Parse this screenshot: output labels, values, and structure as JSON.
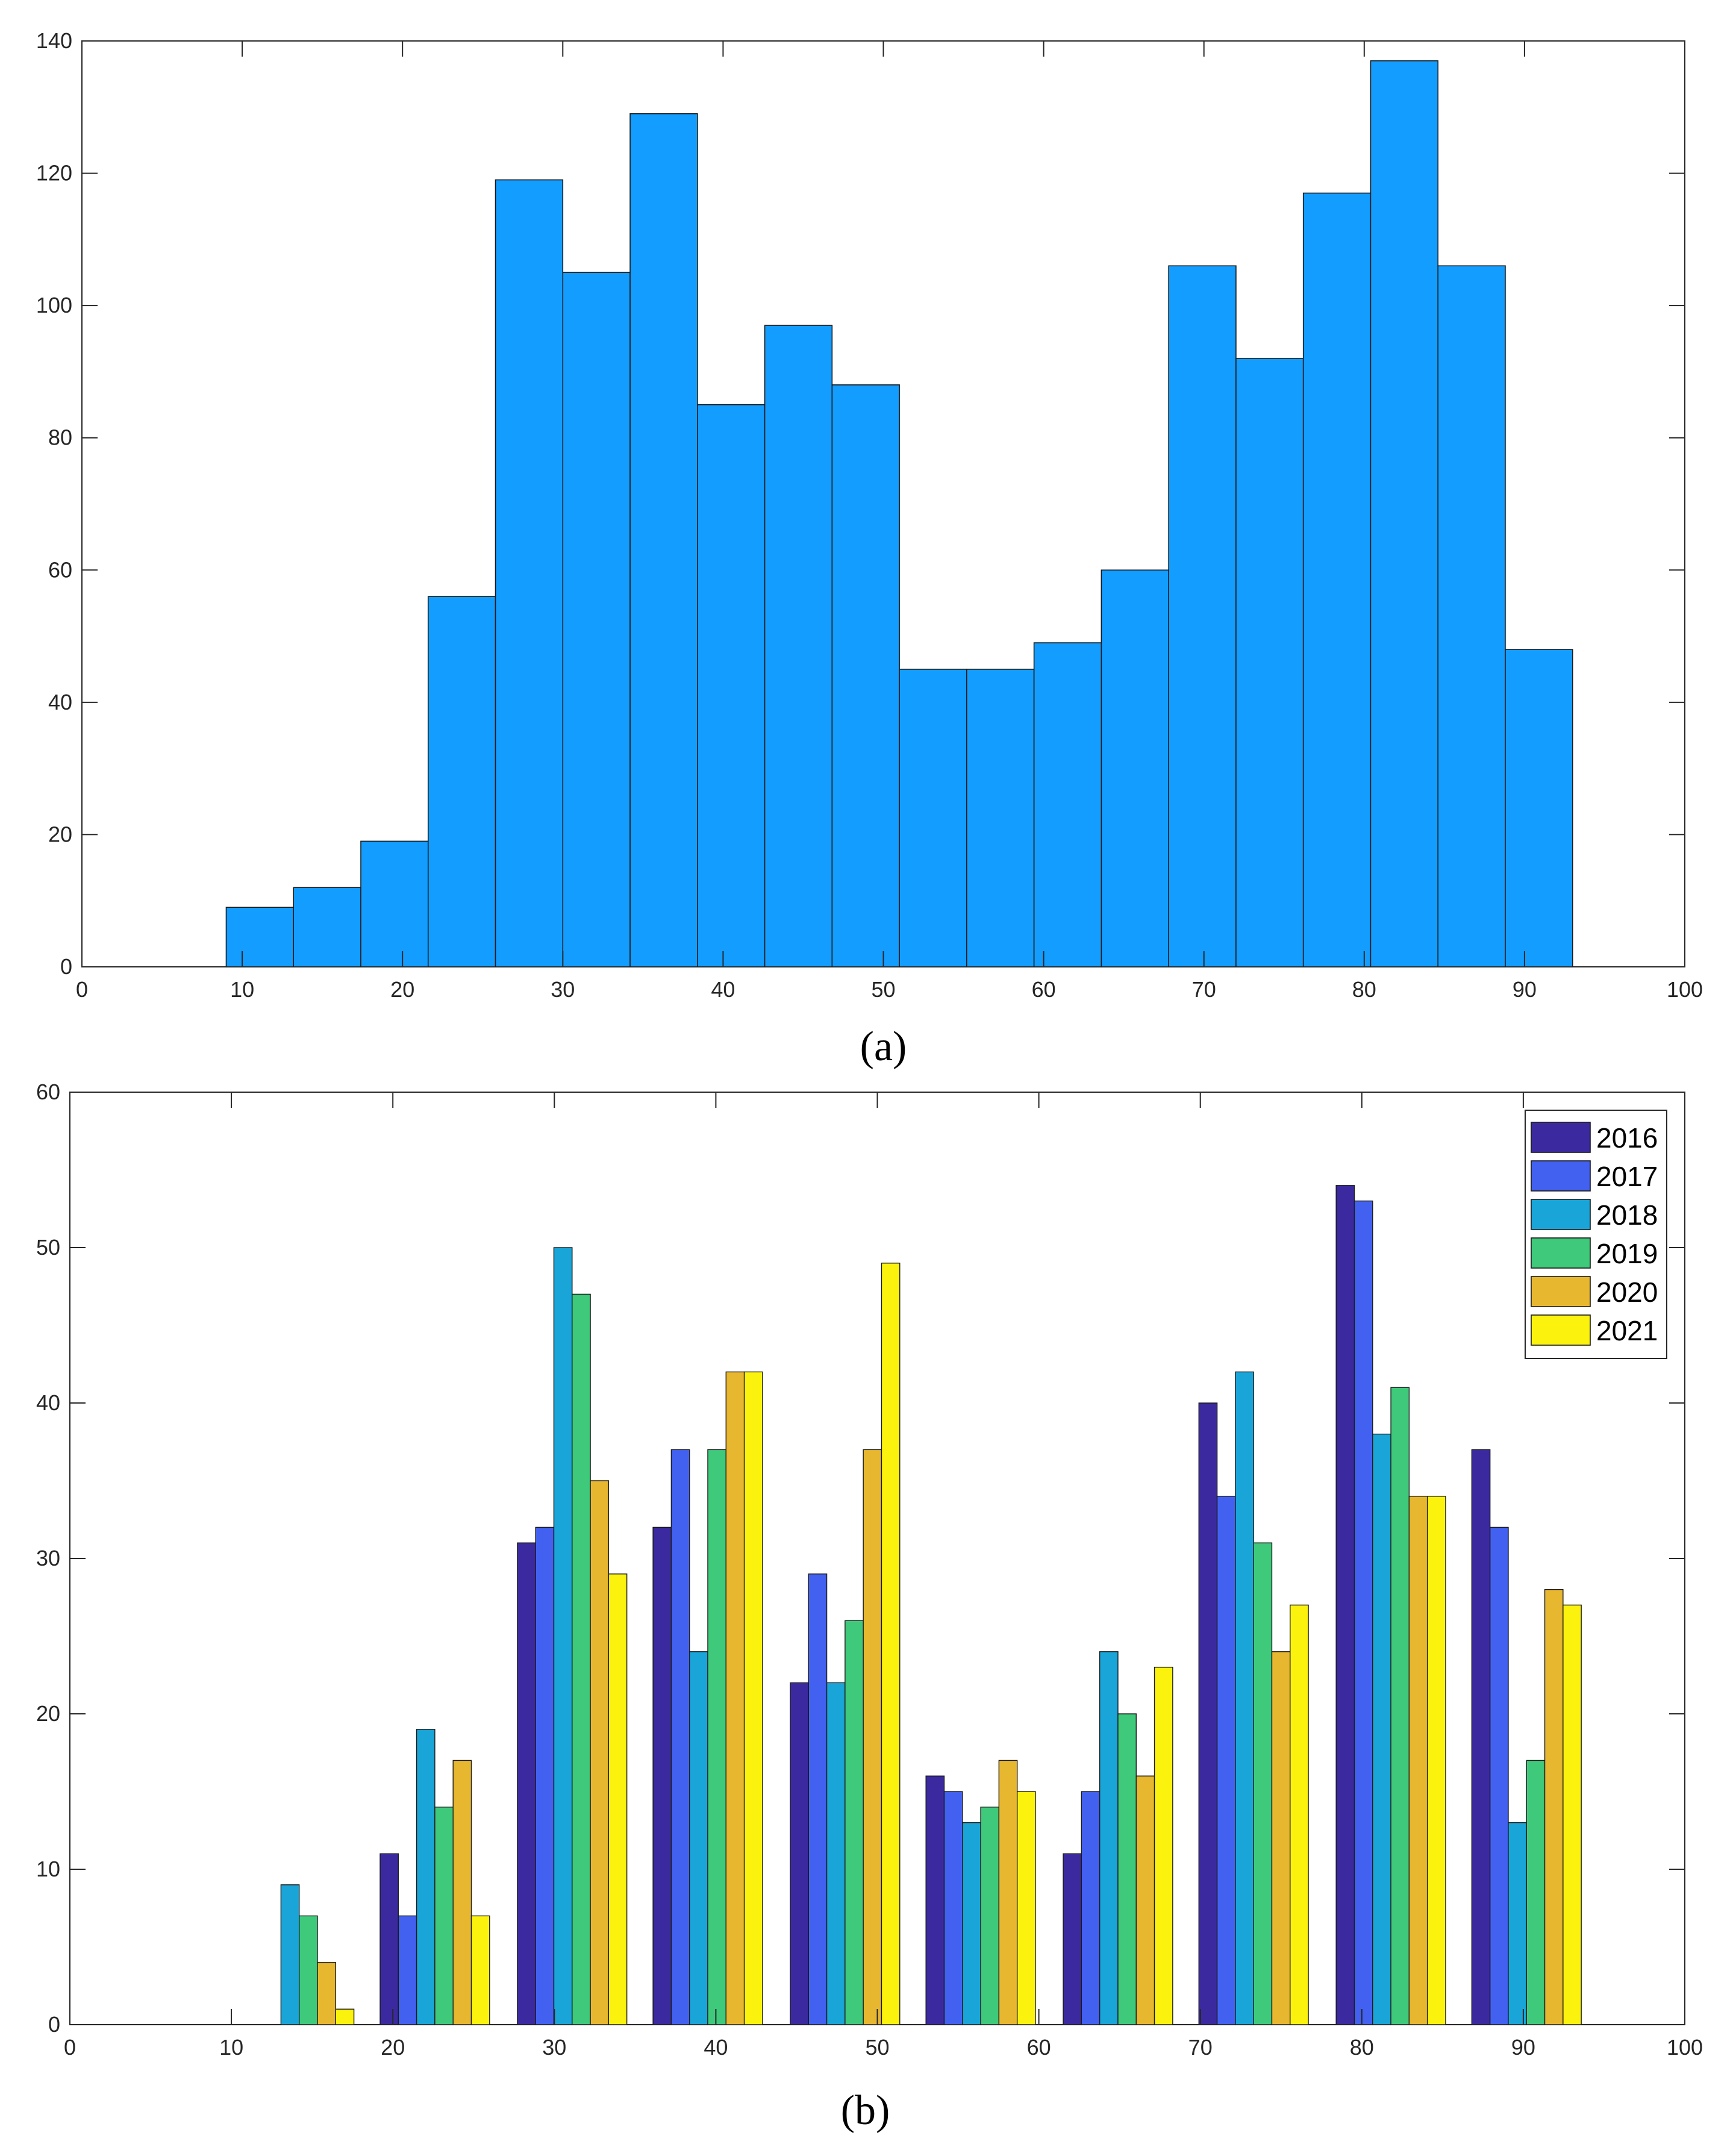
{
  "chart_data": [
    {
      "type": "bar",
      "panel_label": "(a)",
      "title": "",
      "xlabel": "",
      "ylabel": "",
      "xlim": [
        0,
        100
      ],
      "ylim": [
        0,
        140
      ],
      "xticks": [
        0,
        10,
        20,
        30,
        40,
        50,
        60,
        70,
        80,
        90,
        100
      ],
      "yticks": [
        0,
        20,
        40,
        60,
        80,
        100,
        120,
        140
      ],
      "bin_edges": [
        9,
        13.2,
        17.4,
        21.6,
        25.8,
        30,
        34.2,
        38.4,
        42.6,
        46.8,
        51,
        55.2,
        59.4,
        63.6,
        67.8,
        72,
        76.2,
        80.4,
        84.6,
        88.8,
        93
      ],
      "values": [
        9,
        12,
        19,
        56,
        119,
        105,
        129,
        85,
        97,
        88,
        45,
        45,
        49,
        60,
        106,
        92,
        117,
        137,
        106,
        48
      ],
      "color": "#139dff",
      "grid": false
    },
    {
      "type": "bar",
      "panel_label": "(b)",
      "title": "",
      "xlabel": "",
      "ylabel": "",
      "xlim": [
        0,
        100
      ],
      "ylim": [
        0,
        60
      ],
      "xticks": [
        0,
        10,
        20,
        30,
        40,
        50,
        60,
        70,
        80,
        90,
        100
      ],
      "yticks": [
        0,
        10,
        20,
        30,
        40,
        50,
        60
      ],
      "category_centers": [
        14.2,
        22.6,
        31.1,
        39.5,
        48.0,
        56.4,
        64.9,
        73.3,
        81.8,
        90.2
      ],
      "grid": false,
      "legend_position": "top-right",
      "series": [
        {
          "name": "2016",
          "color": "#3b2a9f",
          "values": [
            0,
            11,
            31,
            32,
            22,
            16,
            11,
            40,
            54,
            37
          ]
        },
        {
          "name": "2017",
          "color": "#4361f0",
          "values": [
            0,
            7,
            32,
            37,
            29,
            15,
            15,
            34,
            53,
            32
          ]
        },
        {
          "name": "2018",
          "color": "#1aa5d8",
          "values": [
            9,
            19,
            50,
            24,
            22,
            13,
            24,
            42,
            38,
            13
          ]
        },
        {
          "name": "2019",
          "color": "#3fc97b",
          "values": [
            7,
            14,
            47,
            37,
            26,
            14,
            20,
            31,
            41,
            17
          ]
        },
        {
          "name": "2020",
          "color": "#e8b730",
          "values": [
            4,
            17,
            35,
            42,
            37,
            17,
            16,
            24,
            34,
            28
          ]
        },
        {
          "name": "2021",
          "color": "#fbf30e",
          "values": [
            1,
            7,
            29,
            42,
            49,
            15,
            23,
            27,
            34,
            27
          ]
        }
      ]
    }
  ]
}
